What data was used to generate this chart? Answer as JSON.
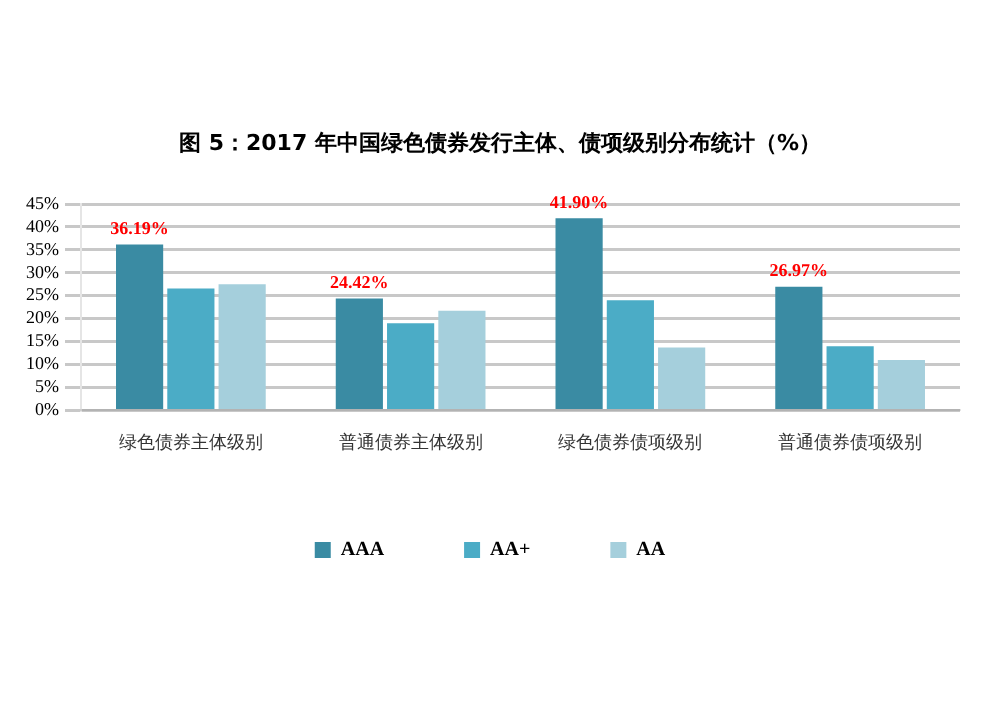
{
  "chart_data": {
    "type": "bar",
    "title": "图 5：2017 年中国绿色债券发行主体、债项级别分布统计（%）",
    "categories": [
      "绿色债券主体级别",
      "普通债券主体级别",
      "绿色债券债项级别",
      "普通债券债项级别"
    ],
    "series": [
      {
        "name": "AAA",
        "color": "#3a8ba3",
        "values": [
          36.19,
          24.42,
          41.9,
          26.97
        ],
        "value_labels": [
          "36.19%",
          "24.42%",
          "41.90%",
          "26.97%"
        ]
      },
      {
        "name": "AA+",
        "color": "#4bacc6",
        "values": [
          26.6,
          19,
          24,
          14
        ]
      },
      {
        "name": "AA",
        "color": "#a5cfdc",
        "values": [
          27.5,
          21.7,
          13.7,
          11
        ]
      }
    ],
    "ylim": [
      0,
      45
    ],
    "yticks": [
      {
        "value": 0,
        "label": "0%"
      },
      {
        "value": 5,
        "label": "5%"
      },
      {
        "value": 10,
        "label": "10%"
      },
      {
        "value": 15,
        "label": "15%"
      },
      {
        "value": 20,
        "label": "20%"
      },
      {
        "value": 25,
        "label": "25%"
      },
      {
        "value": 30,
        "label": "30%"
      },
      {
        "value": 35,
        "label": "35%"
      },
      {
        "value": 40,
        "label": "40%"
      },
      {
        "value": 45,
        "label": "45%"
      }
    ],
    "grid": "y",
    "legend": "bottom"
  }
}
